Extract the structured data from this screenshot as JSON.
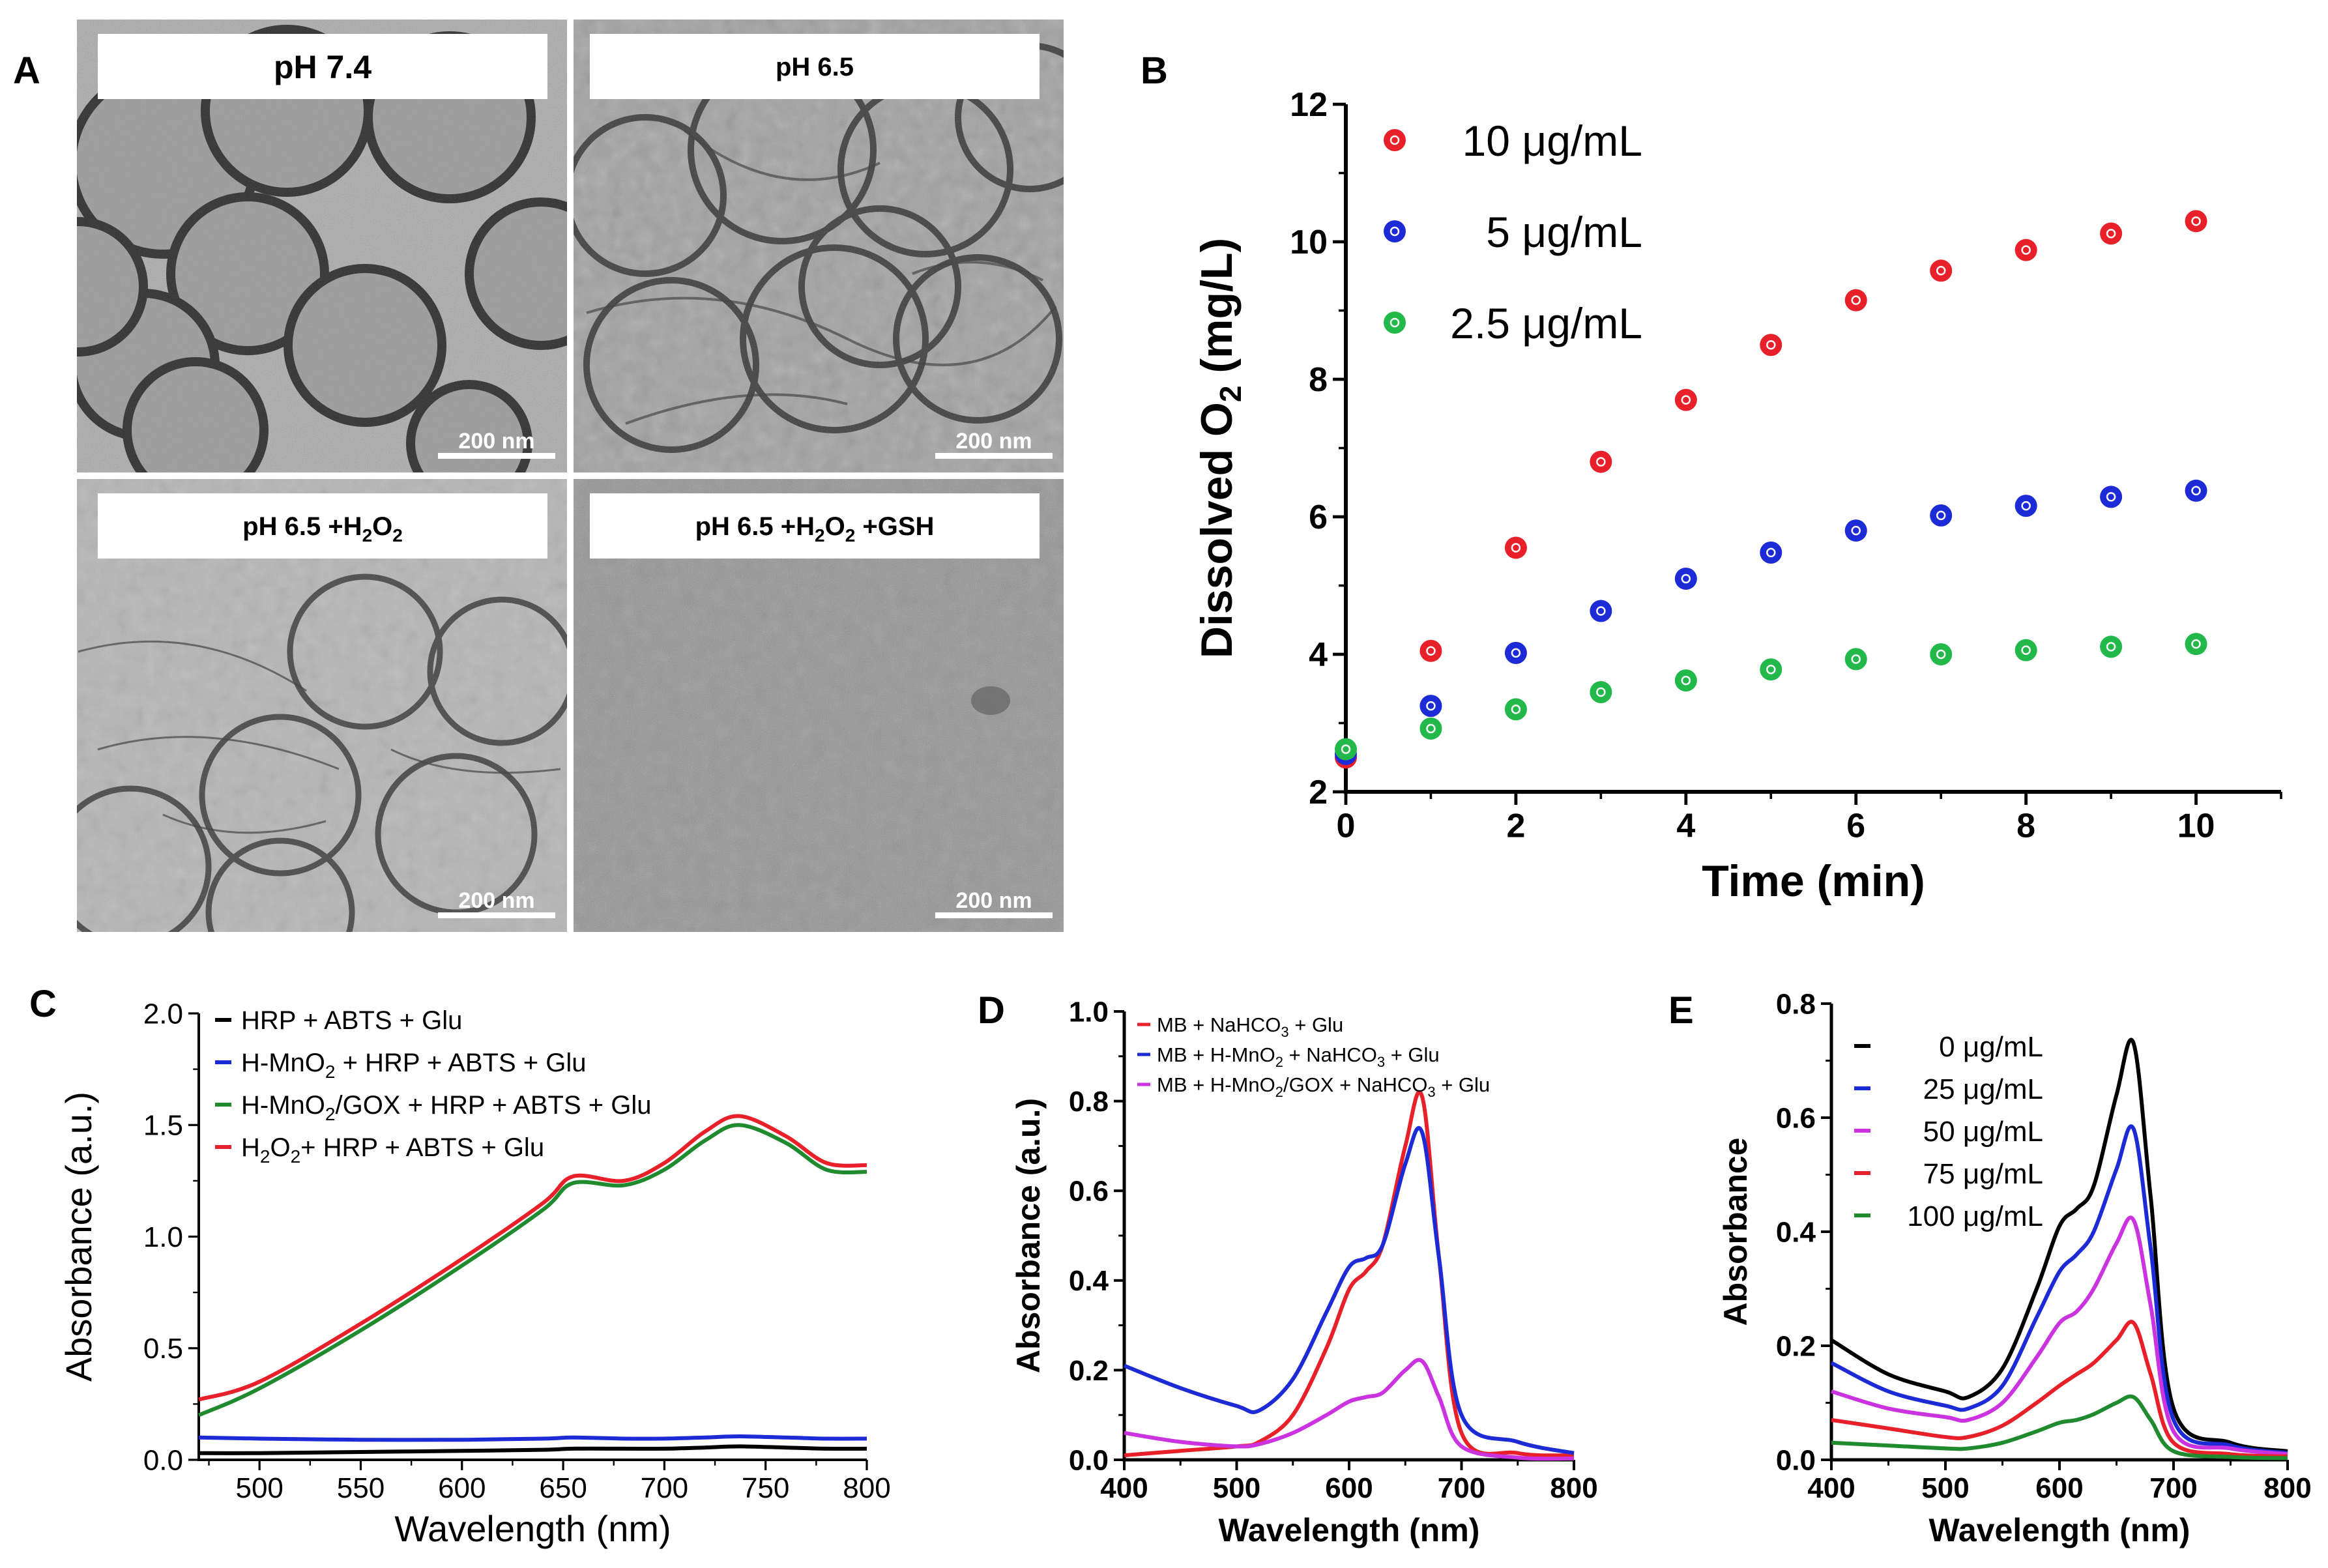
{
  "panel_labels": {
    "a": "A",
    "b": "B",
    "c": "C",
    "d": "D",
    "e": "E"
  },
  "tem": {
    "images": [
      {
        "label": "pH 7.4",
        "scale": "200 nm"
      },
      {
        "label": "pH 6.5",
        "scale": "200 nm"
      },
      {
        "label_main": "pH 6.5 +H",
        "sub1": "2",
        "mid1": "O",
        "sub2": "2",
        "tail": "",
        "scale": "200 nm"
      },
      {
        "label_main": "pH 6.5 +H",
        "sub1": "2",
        "mid1": "O",
        "sub2": "2",
        "tail": " +GSH",
        "scale": "200 nm"
      }
    ]
  },
  "chart_data": [
    {
      "panel": "B",
      "type": "scatter",
      "xlabel": "Time (min)",
      "ylabel": "Dissolved O2 (mg/L)",
      "ylabel_main": "Dissolved O",
      "ylabel_sub": "2",
      "ylabel_tail": " (mg/L)",
      "xlim": [
        0,
        11
      ],
      "ylim": [
        2,
        12
      ],
      "xticks": [
        "0",
        "2",
        "4",
        "6",
        "8",
        "10"
      ],
      "yticks": [
        "2",
        "4",
        "6",
        "8",
        "10",
        "12"
      ],
      "x": [
        0,
        1,
        2,
        3,
        4,
        5,
        6,
        7,
        8,
        9,
        10
      ],
      "series": [
        {
          "name": "10 μg/mL",
          "color": "#e8202a",
          "values": [
            2.5,
            4.05,
            5.55,
            6.8,
            7.7,
            8.5,
            9.15,
            9.58,
            9.88,
            10.12,
            10.3
          ]
        },
        {
          "name": "  5 μg/mL",
          "color": "#1c2bd6",
          "values": [
            2.55,
            3.25,
            4.02,
            4.63,
            5.1,
            5.48,
            5.8,
            6.02,
            6.16,
            6.29,
            6.38
          ]
        },
        {
          "name": "2.5 μg/mL",
          "color": "#22b84a",
          "values": [
            2.62,
            2.92,
            3.2,
            3.45,
            3.62,
            3.78,
            3.93,
            4.0,
            4.06,
            4.11,
            4.15
          ]
        }
      ]
    },
    {
      "panel": "C",
      "type": "line",
      "xlabel": "Wavelength (nm)",
      "ylabel": "Absorbance (a.u.)",
      "xlim": [
        470,
        800
      ],
      "ylim": [
        0,
        2.0
      ],
      "xticks": [
        "500",
        "550",
        "600",
        "650",
        "700",
        "750",
        "800"
      ],
      "yticks": [
        "0.0",
        "0.5",
        "1.0",
        "1.5",
        "2.0"
      ],
      "x": [
        470,
        500,
        550,
        600,
        640,
        655,
        680,
        700,
        720,
        737,
        760,
        780,
        800
      ],
      "series": [
        {
          "name": "HRP + ABTS + Glu",
          "color": "#000000",
          "values": [
            0.03,
            0.03,
            0.035,
            0.04,
            0.045,
            0.05,
            0.05,
            0.05,
            0.055,
            0.06,
            0.055,
            0.05,
            0.05
          ]
        },
        {
          "name": "H-MnO2 + HRP + ABTS + Glu",
          "color": "#1c2bd6",
          "values": [
            0.1,
            0.095,
            0.09,
            0.09,
            0.095,
            0.1,
            0.095,
            0.095,
            0.1,
            0.105,
            0.1,
            0.095,
            0.095
          ]
        },
        {
          "name": "H-MnO2/GOX + HRP + ABTS + Glu",
          "color": "#1f8a2e",
          "values": [
            0.2,
            0.32,
            0.58,
            0.87,
            1.12,
            1.24,
            1.23,
            1.3,
            1.43,
            1.5,
            1.42,
            1.3,
            1.29
          ]
        },
        {
          "name": "H2O2+ HRP + ABTS + Glu",
          "color": "#e8202a",
          "values": [
            0.27,
            0.35,
            0.61,
            0.9,
            1.15,
            1.27,
            1.25,
            1.33,
            1.47,
            1.54,
            1.45,
            1.33,
            1.32
          ]
        }
      ]
    },
    {
      "panel": "D",
      "type": "line",
      "xlabel": "Wavelength (nm)",
      "ylabel": "Absorbance (a.u.)",
      "xlim": [
        400,
        800
      ],
      "ylim": [
        0,
        1.0
      ],
      "xticks": [
        "400",
        "500",
        "600",
        "700",
        "800"
      ],
      "yticks": [
        "0.0",
        "0.2",
        "0.4",
        "0.6",
        "0.8",
        "1.0"
      ],
      "x": [
        400,
        450,
        500,
        520,
        550,
        580,
        600,
        615,
        630,
        650,
        665,
        680,
        700,
        750,
        800
      ],
      "series": [
        {
          "name": "MB + NaHCO3 + Glu",
          "color": "#e8202a",
          "values": [
            0.01,
            0.02,
            0.03,
            0.04,
            0.1,
            0.25,
            0.38,
            0.42,
            0.48,
            0.7,
            0.81,
            0.45,
            0.06,
            0.015,
            0.01
          ]
        },
        {
          "name": "MB + H-MnO2 + NaHCO3 + Glu",
          "color": "#1c2bd6",
          "values": [
            0.21,
            0.16,
            0.12,
            0.11,
            0.18,
            0.33,
            0.43,
            0.45,
            0.48,
            0.66,
            0.73,
            0.45,
            0.1,
            0.04,
            0.015
          ]
        },
        {
          "name": "MB + H-MnO2/GOX + NaHCO3 + Glu",
          "color": "#cc33e0",
          "values": [
            0.06,
            0.04,
            0.03,
            0.035,
            0.06,
            0.1,
            0.13,
            0.14,
            0.15,
            0.2,
            0.22,
            0.14,
            0.03,
            0.005,
            0.003
          ]
        }
      ]
    },
    {
      "panel": "E",
      "type": "line",
      "xlabel": "Wavelength (nm)",
      "ylabel": "Absorbance",
      "xlim": [
        400,
        800
      ],
      "ylim": [
        0,
        0.8
      ],
      "xticks": [
        "400",
        "500",
        "600",
        "700",
        "800"
      ],
      "yticks": [
        "0.0",
        "0.2",
        "0.4",
        "0.6",
        "0.8"
      ],
      "x": [
        400,
        450,
        500,
        520,
        550,
        580,
        600,
        615,
        630,
        650,
        665,
        680,
        700,
        750,
        800
      ],
      "series": [
        {
          "name": "  0 μg/mL",
          "color": "#000000",
          "values": [
            0.21,
            0.15,
            0.12,
            0.11,
            0.16,
            0.3,
            0.41,
            0.44,
            0.48,
            0.64,
            0.73,
            0.46,
            0.09,
            0.03,
            0.015
          ]
        },
        {
          "name": " 25 μg/mL",
          "color": "#1c2bd6",
          "values": [
            0.17,
            0.12,
            0.095,
            0.09,
            0.13,
            0.25,
            0.33,
            0.36,
            0.4,
            0.51,
            0.58,
            0.37,
            0.07,
            0.025,
            0.012
          ]
        },
        {
          "name": " 50 μg/mL",
          "color": "#cc33e0",
          "values": [
            0.12,
            0.09,
            0.075,
            0.07,
            0.1,
            0.18,
            0.24,
            0.26,
            0.3,
            0.38,
            0.42,
            0.27,
            0.05,
            0.02,
            0.01
          ]
        },
        {
          "name": " 75 μg/mL",
          "color": "#e8202a",
          "values": [
            0.07,
            0.055,
            0.04,
            0.04,
            0.06,
            0.1,
            0.13,
            0.15,
            0.17,
            0.21,
            0.24,
            0.15,
            0.03,
            0.01,
            0.006
          ]
        },
        {
          "name": "100 μg/mL",
          "color": "#1f8a2e",
          "values": [
            0.03,
            0.025,
            0.02,
            0.02,
            0.03,
            0.05,
            0.065,
            0.07,
            0.08,
            0.1,
            0.11,
            0.07,
            0.015,
            0.005,
            0.003
          ]
        }
      ]
    }
  ]
}
